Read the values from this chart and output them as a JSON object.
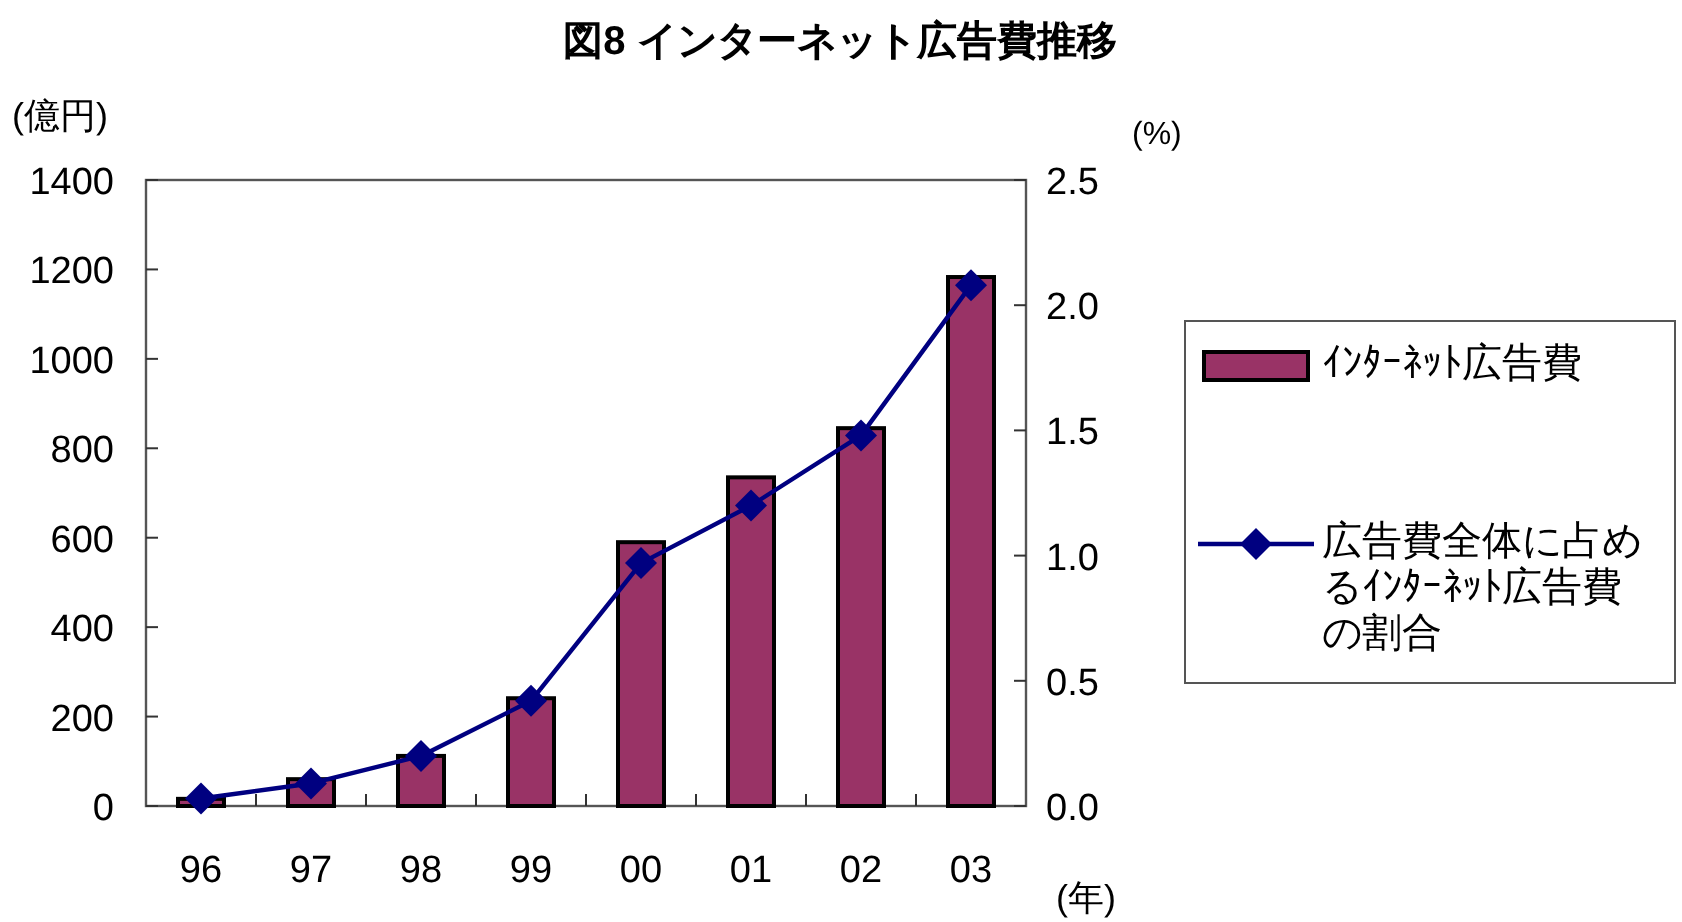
{
  "chart_data": {
    "type": "bar",
    "title": "図8 インターネット広告費推移",
    "ylabel": "(億円)",
    "y2label": "(%)",
    "xlabel": "(年)",
    "categories": [
      "96",
      "97",
      "98",
      "99",
      "00",
      "01",
      "02",
      "03"
    ],
    "series": [
      {
        "name": "ｲﾝﾀｰﾈｯﾄ広告費",
        "color": "#993366",
        "values": [
          16,
          60,
          112,
          241,
          590,
          735,
          845,
          1183
        ]
      },
      {
        "name": "広告費全体に占めるｲﾝﾀｰﾈｯﾄ広告費の割合",
        "type": "line",
        "axis": "y2",
        "color": "#000080",
        "marker": "diamond",
        "values": [
          0.03,
          0.09,
          0.2,
          0.42,
          0.97,
          1.2,
          1.48,
          2.08
        ]
      }
    ],
    "ylim": [
      0,
      1400
    ],
    "yticks": [
      0,
      200,
      400,
      600,
      800,
      1000,
      1200,
      1400
    ],
    "y2lim": [
      0,
      2.5
    ],
    "y2ticks": [
      {
        "value": 0,
        "label": "0.0"
      },
      {
        "value": 0.5,
        "label": "0.5"
      },
      {
        "value": 1,
        "label": "1.0"
      },
      {
        "value": 1.5,
        "label": "1.5"
      },
      {
        "value": 2,
        "label": "2.0"
      },
      {
        "value": 2.5,
        "label": "2.5"
      }
    ],
    "grid": false,
    "legend": "right"
  }
}
